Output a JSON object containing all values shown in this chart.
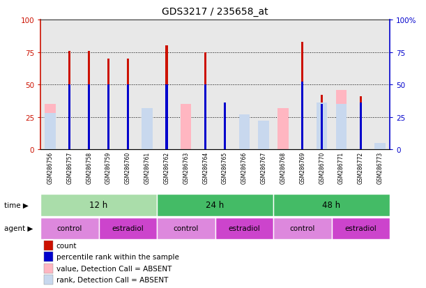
{
  "title": "GDS3217 / 235658_at",
  "samples": [
    "GSM286756",
    "GSM286757",
    "GSM286758",
    "GSM286759",
    "GSM286760",
    "GSM286761",
    "GSM286762",
    "GSM286763",
    "GSM286764",
    "GSM286765",
    "GSM286766",
    "GSM286767",
    "GSM286768",
    "GSM286769",
    "GSM286770",
    "GSM286771",
    "GSM286772",
    "GSM286773"
  ],
  "count_values": [
    0,
    76,
    76,
    70,
    70,
    0,
    80,
    0,
    75,
    36,
    0,
    0,
    0,
    83,
    42,
    0,
    41,
    0
  ],
  "percentile_values": [
    0,
    50,
    50,
    50,
    50,
    0,
    50,
    0,
    50,
    36,
    0,
    0,
    0,
    52,
    35,
    0,
    36,
    0
  ],
  "absent_value_values": [
    35,
    0,
    0,
    0,
    0,
    30,
    0,
    35,
    0,
    0,
    22,
    15,
    32,
    0,
    0,
    46,
    0,
    0
  ],
  "absent_rank_values": [
    28,
    0,
    0,
    0,
    0,
    32,
    0,
    0,
    0,
    0,
    27,
    22,
    0,
    0,
    36,
    35,
    0,
    5
  ],
  "time_row": [
    {
      "label": "12 h",
      "start": 0,
      "end": 6,
      "color": "#aaddaa"
    },
    {
      "label": "24 h",
      "start": 6,
      "end": 12,
      "color": "#44bb66"
    },
    {
      "label": "48 h",
      "start": 12,
      "end": 18,
      "color": "#44bb66"
    }
  ],
  "agent_row": [
    {
      "label": "control",
      "start": 0,
      "end": 3
    },
    {
      "label": "estradiol",
      "start": 3,
      "end": 6
    },
    {
      "label": "control",
      "start": 6,
      "end": 9
    },
    {
      "label": "estradiol",
      "start": 9,
      "end": 12
    },
    {
      "label": "control",
      "start": 12,
      "end": 15
    },
    {
      "label": "estradiol",
      "start": 15,
      "end": 18
    }
  ],
  "ylim": [
    0,
    100
  ],
  "yticks": [
    0,
    25,
    50,
    75,
    100
  ],
  "count_color": "#cc1100",
  "percentile_color": "#0000cc",
  "absent_value_color": "#ffb6c1",
  "absent_rank_color": "#c8d8ee",
  "col_bg_color": "#cccccc",
  "plot_bg": "#ffffff",
  "left_axis_color": "#cc1100",
  "right_axis_color": "#0000cc",
  "control_color": "#dd88dd",
  "estradiol_color": "#cc44cc",
  "legend_items": [
    {
      "label": "count",
      "color": "#cc1100"
    },
    {
      "label": "percentile rank within the sample",
      "color": "#0000cc"
    },
    {
      "label": "value, Detection Call = ABSENT",
      "color": "#ffb6c1"
    },
    {
      "label": "rank, Detection Call = ABSENT",
      "color": "#c8d8ee"
    }
  ]
}
